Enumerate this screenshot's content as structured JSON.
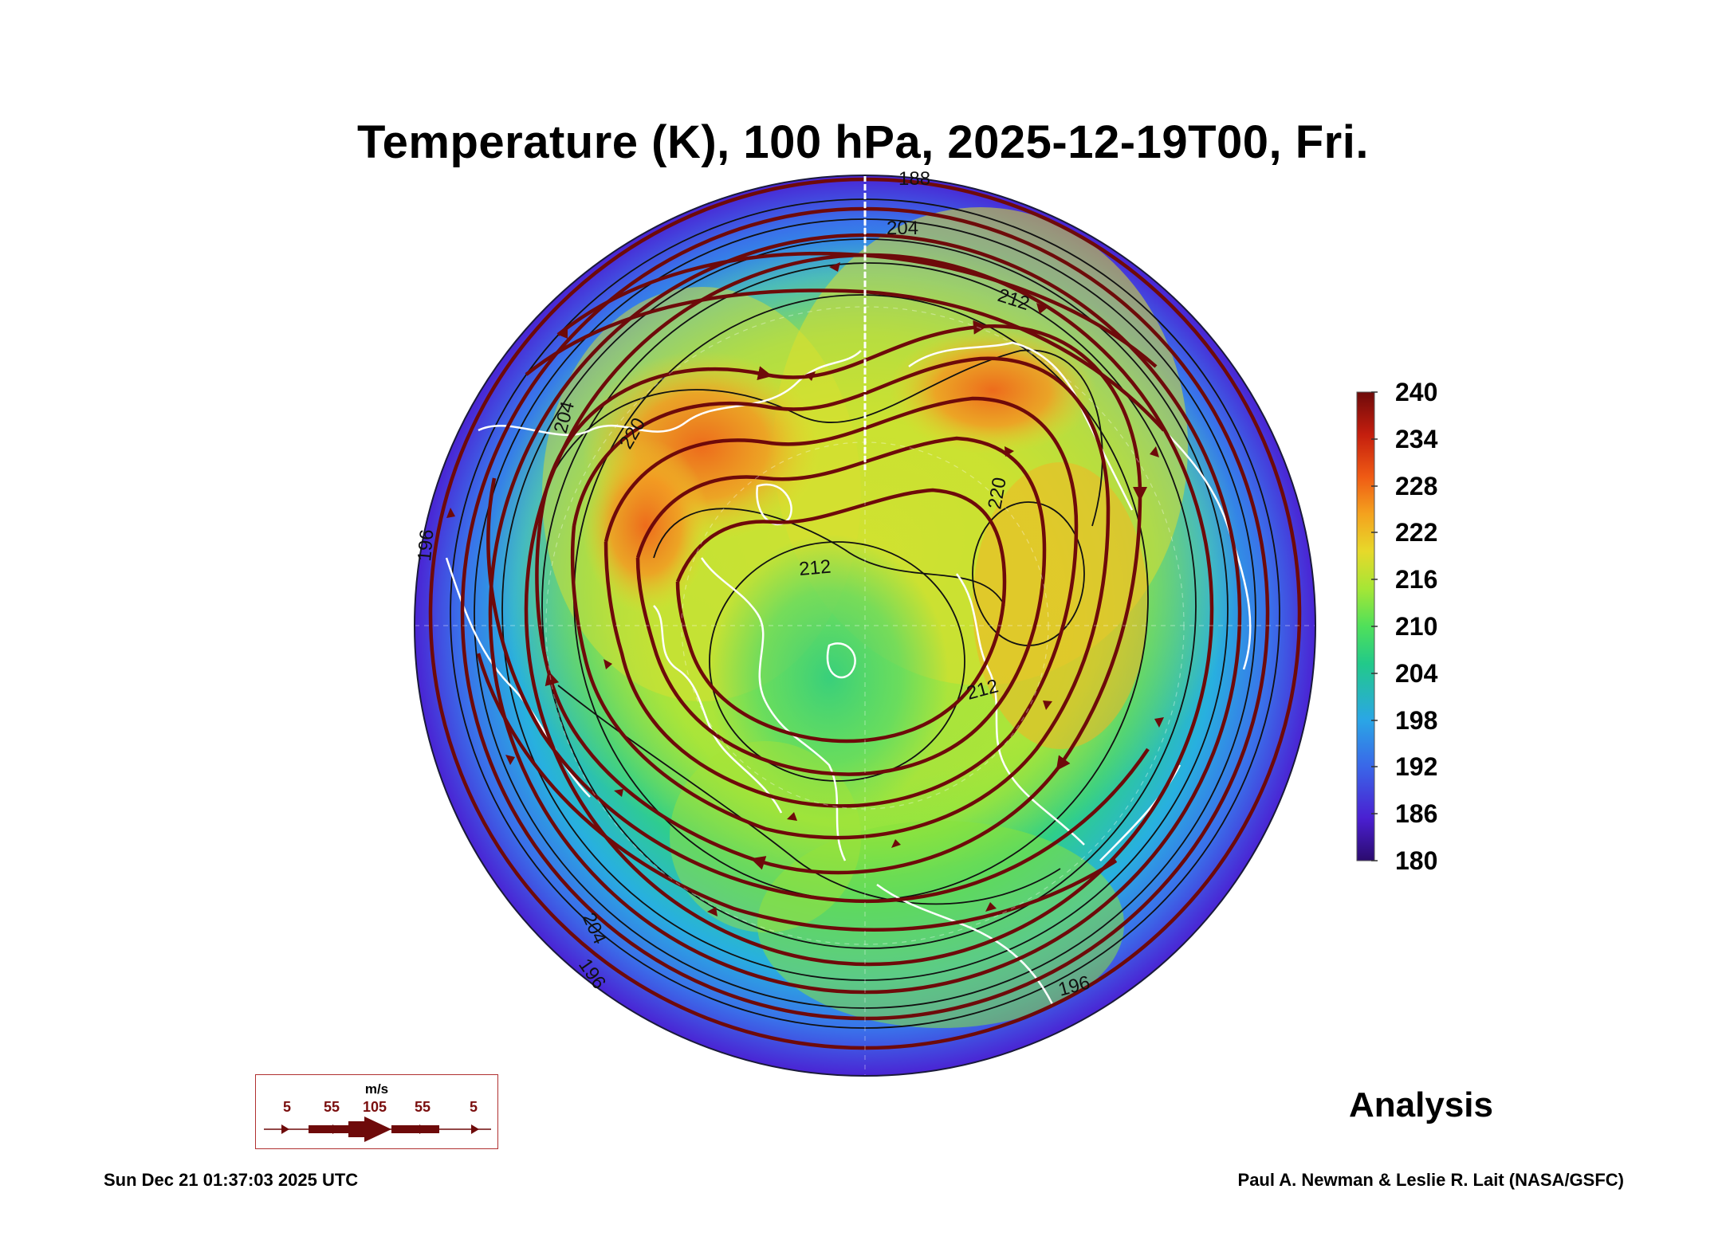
{
  "title": "Temperature (K), 100 hPa, 2025-12-19T00, Fri.",
  "colorbar": {
    "ticks": [
      "240",
      "234",
      "228",
      "222",
      "216",
      "210",
      "204",
      "198",
      "192",
      "186",
      "180"
    ],
    "colors": [
      "#2b0b6e",
      "#4a1fd1",
      "#3a66e8",
      "#2aa6e6",
      "#22c98a",
      "#4fe05a",
      "#a5e636",
      "#e7d92a",
      "#f4a21e",
      "#ef5a14",
      "#c41e0e",
      "#6e0a0a"
    ]
  },
  "contour_labels": [
    {
      "text": "188",
      "name": "contour-label-188"
    },
    {
      "text": "204",
      "name": "contour-label-204-top"
    },
    {
      "text": "212",
      "name": "contour-label-212-top"
    },
    {
      "text": "220",
      "name": "contour-label-220-left"
    },
    {
      "text": "220",
      "name": "contour-label-220-right"
    },
    {
      "text": "212",
      "name": "contour-label-212-center"
    },
    {
      "text": "212",
      "name": "contour-label-212-right"
    },
    {
      "text": "204",
      "name": "contour-label-204-left"
    },
    {
      "text": "196",
      "name": "contour-label-196-left"
    },
    {
      "text": "204",
      "name": "contour-label-204-bottom"
    },
    {
      "text": "196",
      "name": "contour-label-196-bottom"
    },
    {
      "text": "196",
      "name": "contour-label-196-bottom-right"
    }
  ],
  "wind_legend": {
    "unit": "m/s",
    "labels": [
      "5",
      "55",
      "105",
      "55",
      "5"
    ],
    "color": "#6e0a0a"
  },
  "analysis_label": "Analysis",
  "footer": {
    "timestamp": "Sun Dec 21 01:37:03 2025 UTC",
    "credit": "Paul A. Newman & Leslie R. Lait (NASA/GSFC)"
  }
}
